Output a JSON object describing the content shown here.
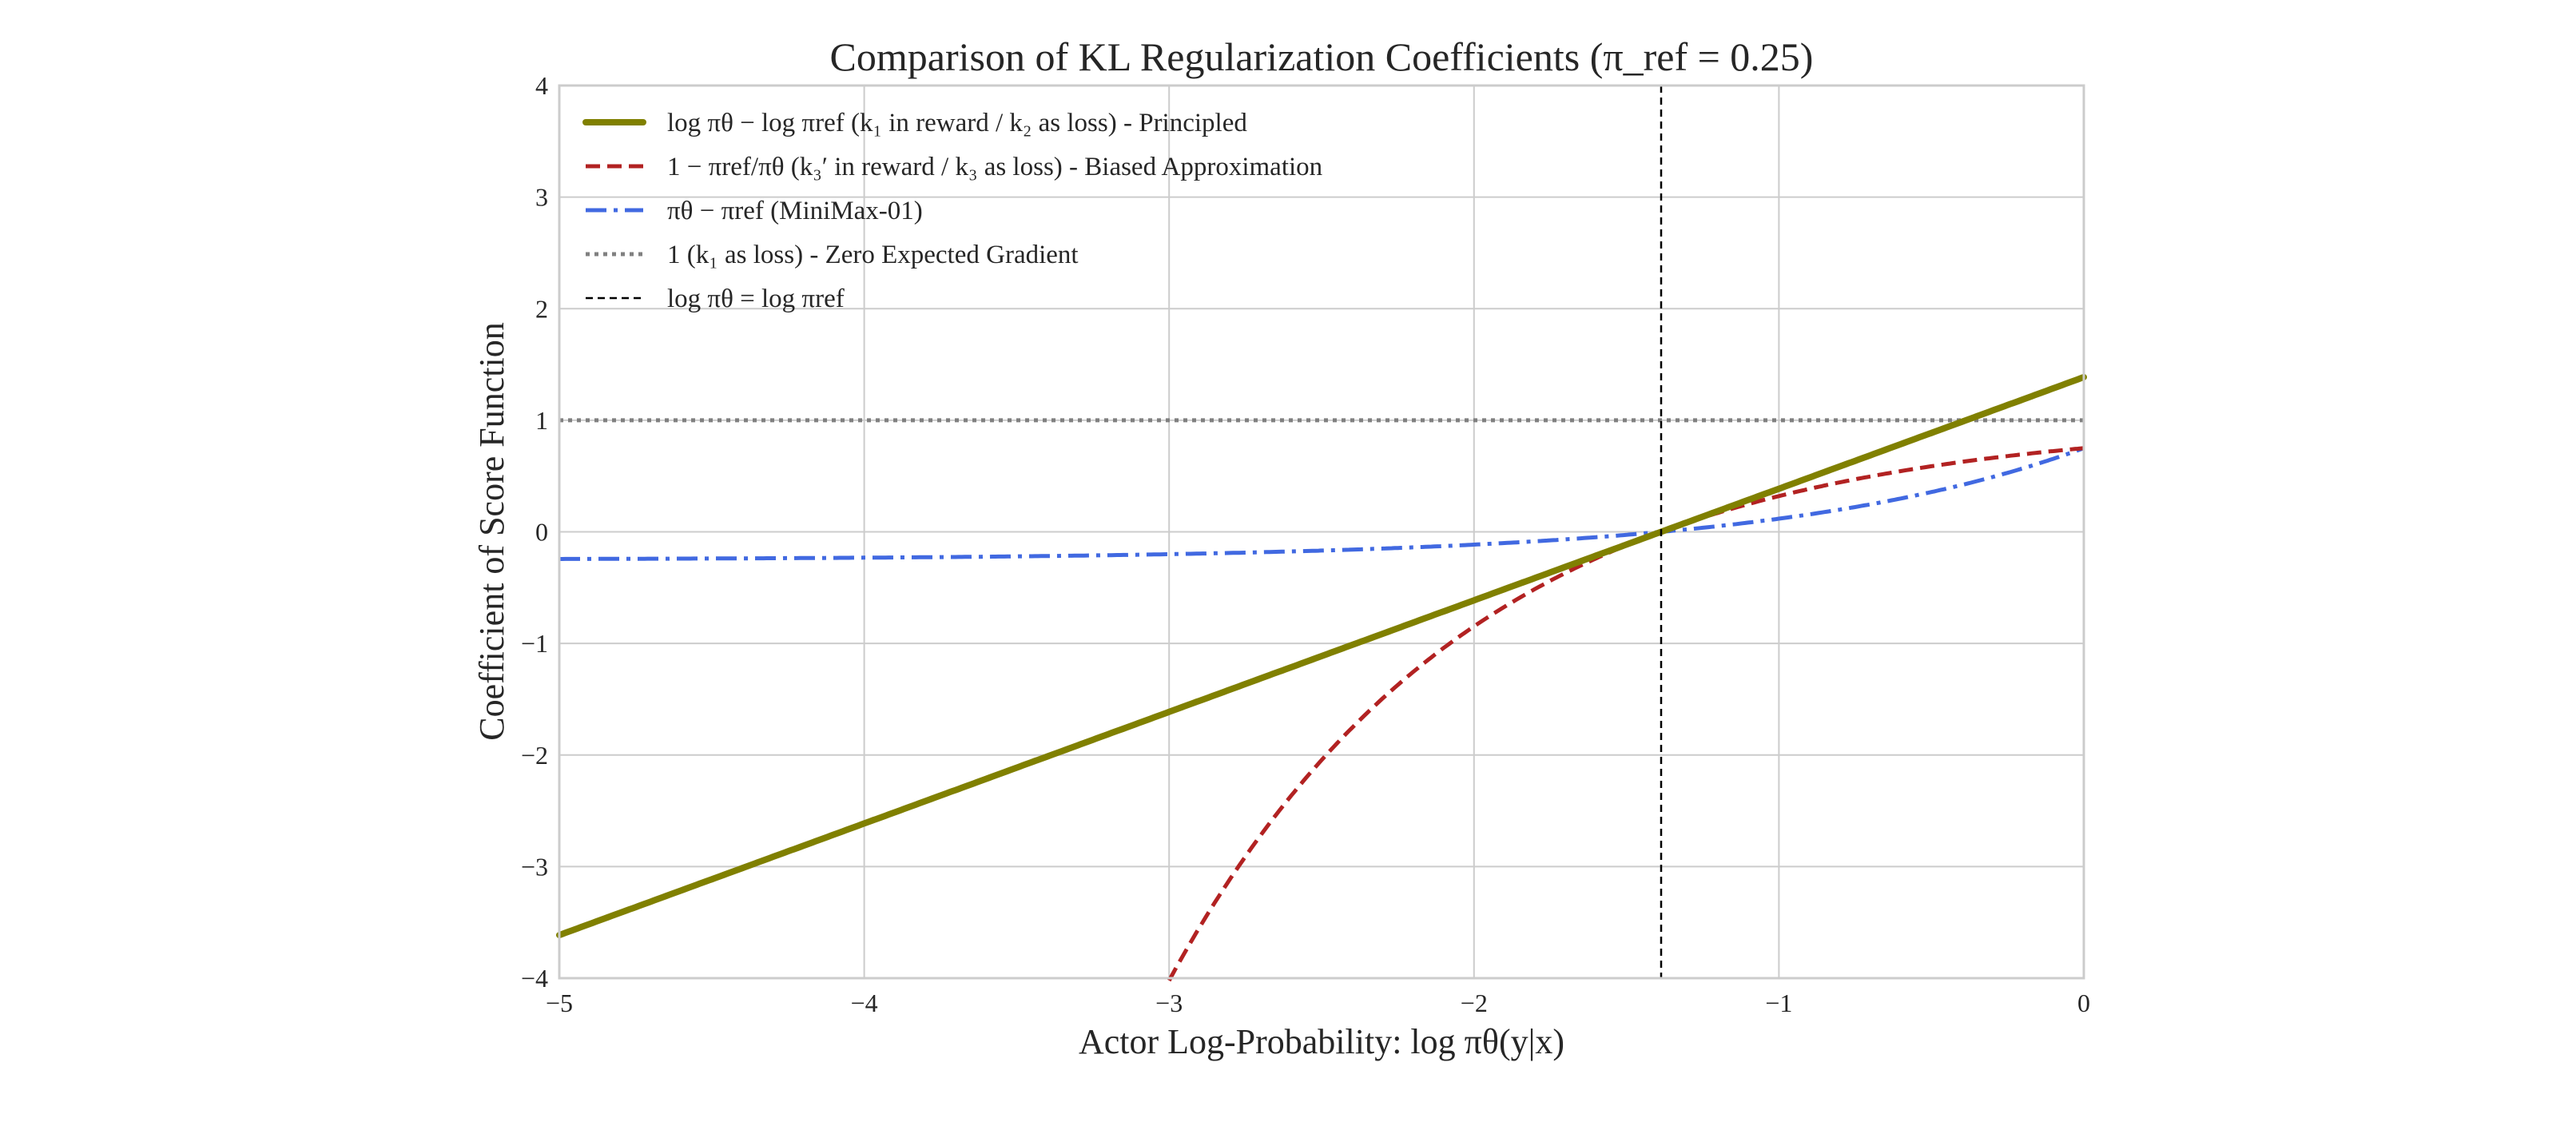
{
  "chart_data": {
    "type": "line",
    "title": "Comparison of KL Regularization Coefficients (π_ref = 0.25)",
    "xlabel": "Actor Log-Probability: log πθ(y|x)",
    "ylabel": "Coefficient of Score Function",
    "xlim": [
      -5,
      0
    ],
    "ylim": [
      -4,
      4
    ],
    "grid": true,
    "legend_position": "top-left",
    "pi_ref": 0.25,
    "xticks": [
      -5,
      -4,
      -3,
      -2,
      -1,
      0
    ],
    "xtick_labels": [
      "−5",
      "−4",
      "−3",
      "−2",
      "−1",
      "0"
    ],
    "yticks": [
      -4,
      -3,
      -2,
      -1,
      0,
      1,
      2,
      3,
      4
    ],
    "ytick_labels": [
      "−4",
      "−3",
      "−2",
      "−1",
      "0",
      "1",
      "2",
      "3",
      "4"
    ],
    "series": [
      {
        "name": "log πθ − log πref (k₁ in reward / k₂ as loss) - Principled",
        "formula": "x - log(pi_ref)",
        "color": "#808000",
        "style": "solid"
      },
      {
        "name": "1 − πref/πθ (k₃′ in reward / k₃ as loss) - Biased Approximation",
        "formula": "1 - pi_ref/exp(x)",
        "color": "#b22222",
        "style": "dashed"
      },
      {
        "name": "πθ − πref (MiniMax-01)",
        "formula": "exp(x) - pi_ref",
        "color": "#4169e1",
        "style": "dashdot"
      },
      {
        "name": "1 (k₁ as loss) - Zero Expected Gradient",
        "formula": "1",
        "color": "#808080",
        "style": "dotted"
      },
      {
        "name": "log πθ = log πref",
        "formula": "vertical at x = log(pi_ref)",
        "color": "#000000",
        "style": "dashed-thin"
      }
    ]
  }
}
